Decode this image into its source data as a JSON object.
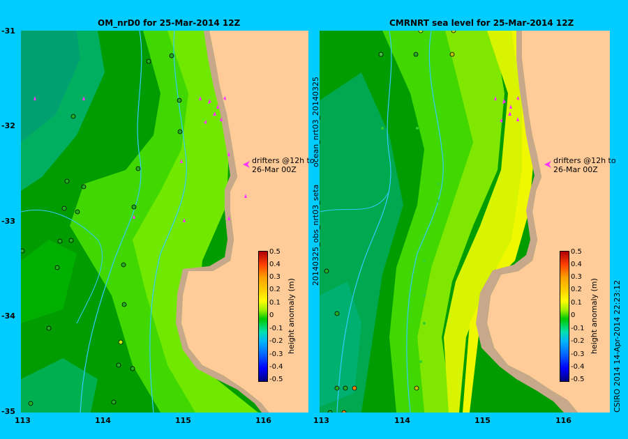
{
  "panels": [
    {
      "title": "OM_nrD0 for 25-Mar-2014 12Z",
      "xticks": [
        "113",
        "114",
        "115",
        "116"
      ],
      "yticks": [
        "-31",
        "-32",
        "-33",
        "-34",
        "-35"
      ],
      "annotation": [
        "drifters @12h to",
        "26-Mar 00Z"
      ],
      "colorbar": {
        "label": "height anomaly (m)",
        "ticks": [
          "0.5",
          "0.4",
          "0.3",
          "0.2",
          "0.1",
          "0",
          "-0.1",
          "-0.2",
          "-0.3",
          "-0.4",
          "-0.5"
        ]
      }
    },
    {
      "title": "CMRNRT sea level  for 25-Mar-2014 12Z",
      "xticks": [
        "113",
        "114",
        "115",
        "116"
      ],
      "annotation": [
        "drifters @12h to",
        "26-Mar 00Z"
      ],
      "colorbar": {
        "label": "height anomaly (m)",
        "ticks": [
          "0.5",
          "0.4",
          "0.3",
          "0.2",
          "0.1",
          "0",
          "-0.1",
          "-0.2",
          "-0.3",
          "-0.4",
          "-0.5"
        ]
      },
      "side_label_top": "ocean_nrt03_20140325",
      "side_label_bottom": "20140325_obs_nrt03_seta"
    }
  ],
  "footer_credit": "CSIRO 2014   14-Apr-2014 22:23:12",
  "colors": {
    "background": "#00ccff",
    "land": "#ffcc99",
    "coast": "#c8a88a",
    "drifters": "#ff33ff",
    "rivers": "#33ccff"
  },
  "colorscale": [
    "#000080",
    "#0000ff",
    "#0060ff",
    "#00b0ff",
    "#00e0b0",
    "#00c800",
    "#40e000",
    "#a0f000",
    "#ffff00",
    "#ffa000",
    "#b00000"
  ],
  "chart_data": {
    "type": "heatmap",
    "x_range": [
      113,
      116.6
    ],
    "y_range": [
      -35,
      -31
    ],
    "z_range": [
      -0.5,
      0.5
    ],
    "series": [
      {
        "name": "OM_nrD0 for 25-Mar-2014 12Z"
      },
      {
        "name": "CMRNRT sea level  for 25-Mar-2014 12Z"
      }
    ]
  }
}
